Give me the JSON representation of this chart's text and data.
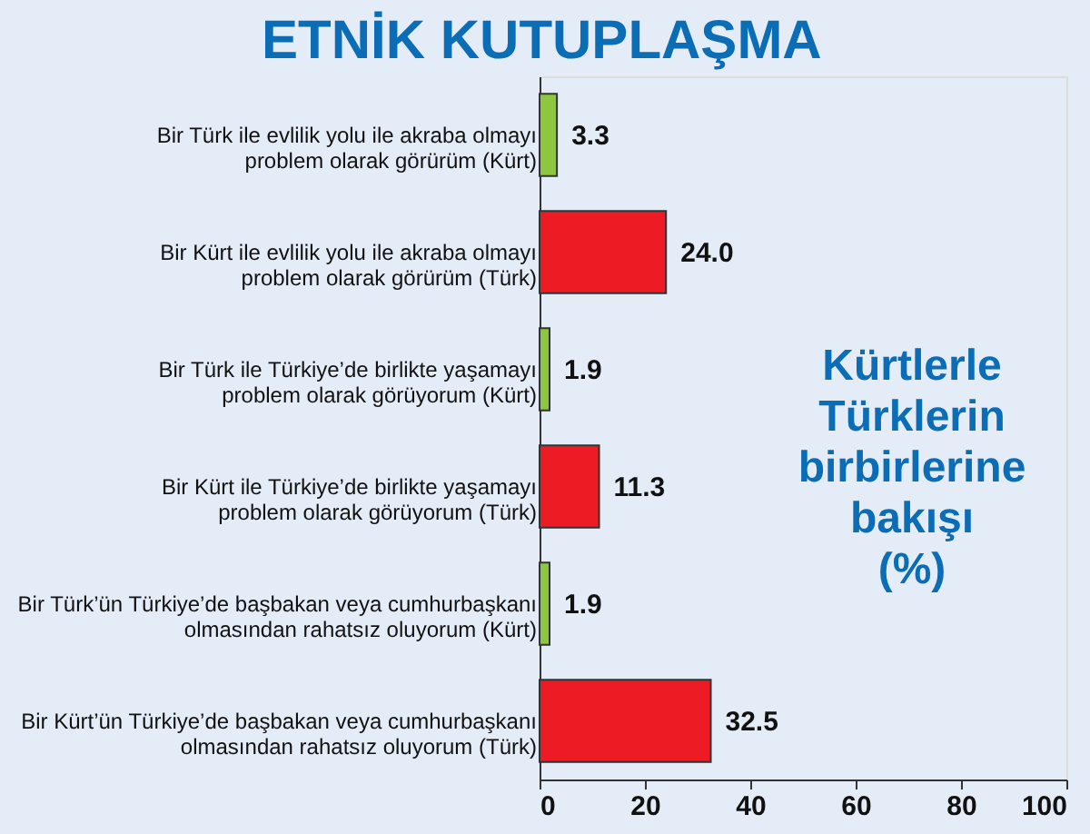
{
  "chart_data": {
    "type": "bar",
    "orientation": "horizontal",
    "title": "ETNİK KUTUPLAŞMA",
    "categories": [
      "Bir Türk ile evlilik yolu ile akraba olmayı\nproblem olarak görürüm (Kürt)",
      "Bir Kürt ile evlilik yolu ile akraba olmayı\nproblem olarak görürüm (Türk)",
      "Bir Türk ile Türkiye’de birlikte yaşamayı\nproblem olarak görüyorum (Kürt)",
      "Bir Kürt ile Türkiye’de birlikte yaşamayı\nproblem olarak görüyorum (Türk)",
      "Bir Türk’ün Türkiye’de başbakan veya cumhurbaşkanı\nolmasından rahatsız oluyorum (Kürt)",
      "Bir Kürt’ün Türkiye’de başbakan veya cumhurbaşkanı\nolmasından rahatsız oluyorum (Türk)"
    ],
    "values": [
      3.3,
      24.0,
      1.9,
      11.3,
      1.9,
      32.5
    ],
    "value_labels": [
      "3.3",
      "24.0",
      "1.9",
      "11.3",
      "1.9",
      "32.5"
    ],
    "colors": [
      "#8dc63f",
      "#ed1c24",
      "#8dc63f",
      "#ed1c24",
      "#8dc63f",
      "#ed1c24"
    ],
    "xlim": [
      0,
      100
    ],
    "xticks": [
      0,
      20,
      40,
      60,
      80,
      100
    ],
    "grid": false,
    "annotations": [
      "Kürtlerle\nTürklerin\nbirbirlerine\nbakışı\n(%)"
    ]
  }
}
